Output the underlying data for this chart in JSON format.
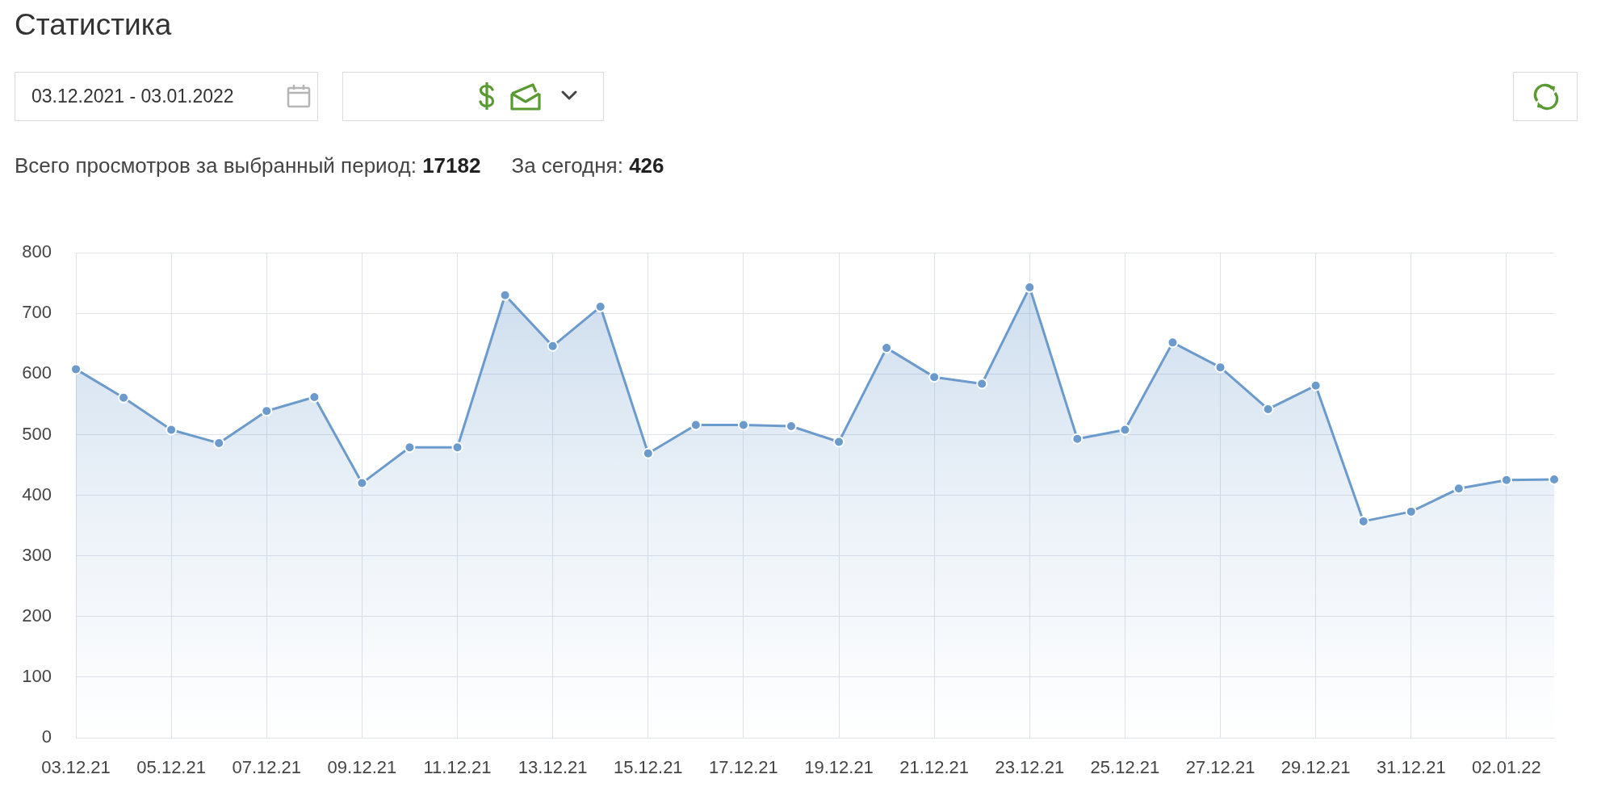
{
  "chart_data": {
    "type": "area",
    "title": "Статистика",
    "annotations": [
      "03.12.2021 - 03.01.2022",
      "Всего просмотров за выбранный период: 17182",
      "За сегодня: 426"
    ],
    "categories": [
      "03.12.21",
      null,
      "05.12.21",
      null,
      "07.12.21",
      null,
      "09.12.21",
      null,
      "11.12.21",
      null,
      "13.12.21",
      null,
      "15.12.21",
      null,
      "17.12.21",
      null,
      "19.12.21",
      null,
      "21.12.21",
      null,
      "23.12.21",
      null,
      "25.12.21",
      null,
      "27.12.21",
      null,
      "29.12.21",
      null,
      "31.12.21",
      null,
      "02.01.22",
      null
    ],
    "values": [
      608,
      561,
      508,
      486,
      539,
      562,
      420,
      479,
      479,
      730,
      646,
      711,
      469,
      516,
      516,
      514,
      488,
      643,
      595,
      584,
      743,
      493,
      508,
      652,
      611,
      542,
      581,
      357,
      373,
      411,
      425,
      426
    ],
    "color": "#6b9bcc",
    "ylim": [
      0,
      800
    ],
    "yticks": [
      0,
      100,
      200,
      300,
      400,
      500,
      600,
      700,
      800
    ],
    "grid": true,
    "marker": "circle",
    "line_style": "solid"
  }
}
